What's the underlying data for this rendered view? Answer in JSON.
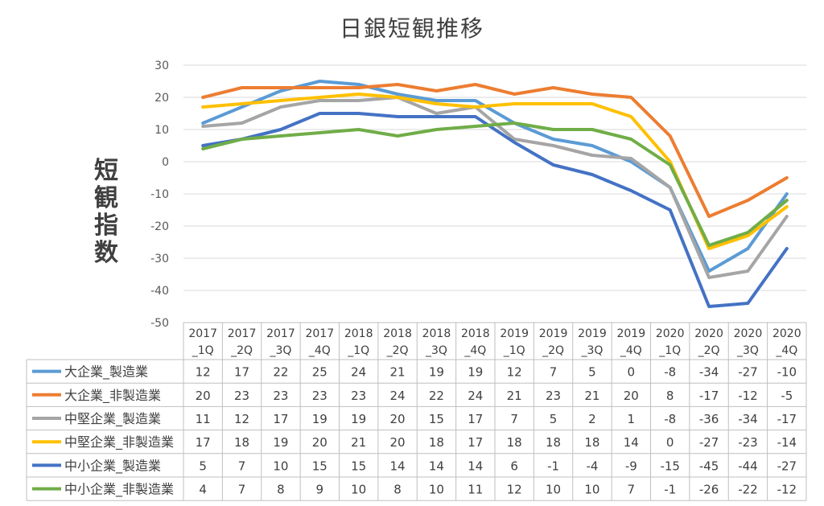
{
  "chart_data": {
    "type": "line",
    "title": "日銀短観推移",
    "ylabel": "短観指数",
    "ylim": [
      -50,
      30
    ],
    "yticks": [
      30,
      20,
      10,
      0,
      -10,
      -20,
      -30,
      -40,
      -50
    ],
    "grid": true,
    "legend": "data table (left column)",
    "categories": [
      [
        "2017",
        "_1Q"
      ],
      [
        "2017",
        "_2Q"
      ],
      [
        "2017",
        "_3Q"
      ],
      [
        "2017",
        "_4Q"
      ],
      [
        "2018",
        "_1Q"
      ],
      [
        "2018",
        "_2Q"
      ],
      [
        "2018",
        "_3Q"
      ],
      [
        "2018",
        "_4Q"
      ],
      [
        "2019",
        "_1Q"
      ],
      [
        "2019",
        "_2Q"
      ],
      [
        "2019",
        "_3Q"
      ],
      [
        "2019",
        "_4Q"
      ],
      [
        "2020",
        "_1Q"
      ],
      [
        "2020",
        "_2Q"
      ],
      [
        "2020",
        "_3Q"
      ],
      [
        "2020",
        "_4Q"
      ]
    ],
    "series": [
      {
        "name": "大企業_製造業",
        "color": "#5B9BD5",
        "values": [
          12,
          17,
          22,
          25,
          24,
          21,
          19,
          19,
          12,
          7,
          5,
          0,
          -8,
          -34,
          -27,
          -10
        ]
      },
      {
        "name": "大企業_非製造業",
        "color": "#ED7D31",
        "values": [
          20,
          23,
          23,
          23,
          23,
          24,
          22,
          24,
          21,
          23,
          21,
          20,
          8,
          -17,
          -12,
          -5
        ]
      },
      {
        "name": "中堅企業_製造業",
        "color": "#A5A5A5",
        "values": [
          11,
          12,
          17,
          19,
          19,
          20,
          15,
          17,
          7,
          5,
          2,
          1,
          -8,
          -36,
          -34,
          -17
        ]
      },
      {
        "name": "中堅企業_非製造業",
        "color": "#FFC000",
        "values": [
          17,
          18,
          19,
          20,
          21,
          20,
          18,
          17,
          18,
          18,
          18,
          14,
          0,
          -27,
          -23,
          -14
        ]
      },
      {
        "name": "中小企業_製造業",
        "color": "#4472C4",
        "values": [
          5,
          7,
          10,
          15,
          15,
          14,
          14,
          14,
          6,
          -1,
          -4,
          -9,
          -15,
          -45,
          -44,
          -27
        ]
      },
      {
        "name": "中小企業_非製造業",
        "color": "#70AD47",
        "values": [
          4,
          7,
          8,
          9,
          10,
          8,
          10,
          11,
          12,
          10,
          10,
          7,
          -1,
          -26,
          -22,
          -12
        ]
      }
    ]
  }
}
